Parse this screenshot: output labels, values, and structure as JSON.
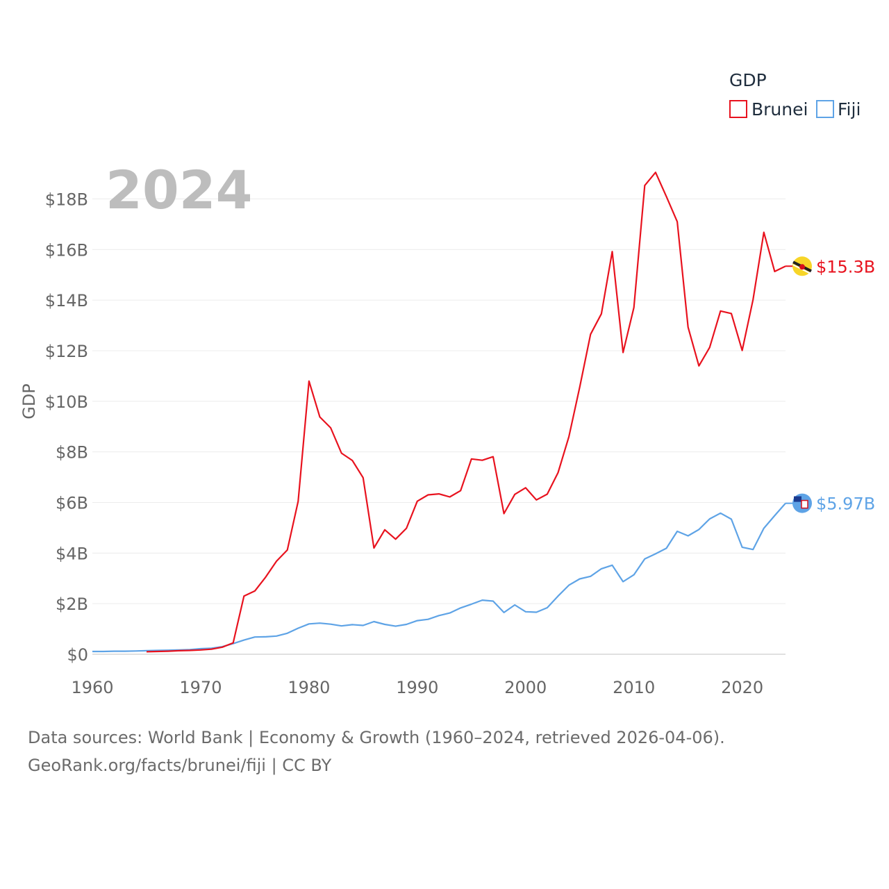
{
  "chart_data": {
    "type": "line",
    "title": "GDP",
    "year_label": "2024",
    "ylabel": "GDP",
    "xlabel": "",
    "xlim": [
      1960,
      2024
    ],
    "ylim": [
      0,
      19000000000
    ],
    "grid": true,
    "legend": {
      "title": "GDP",
      "placement": "top-right"
    },
    "x_ticks": [
      1960,
      1970,
      1980,
      1990,
      2000,
      2010,
      2020
    ],
    "x_tick_labels": [
      "1960",
      "1970",
      "1980",
      "1990",
      "2000",
      "2010",
      "2020"
    ],
    "y_ticks": [
      0,
      2000000000,
      4000000000,
      6000000000,
      8000000000,
      10000000000,
      12000000000,
      14000000000,
      16000000000,
      18000000000
    ],
    "y_tick_labels": [
      "$0",
      "$2B",
      "$4B",
      "$6B",
      "$8B",
      "$10B",
      "$12B",
      "$14B",
      "$16B",
      "$18B"
    ],
    "series": [
      {
        "name": "Brunei",
        "color": "#e8121e",
        "end_label": "$15.3B",
        "x": [
          1965,
          1966,
          1967,
          1968,
          1969,
          1970,
          1971,
          1972,
          1973,
          1974,
          1975,
          1976,
          1977,
          1978,
          1979,
          1980,
          1981,
          1982,
          1983,
          1984,
          1985,
          1986,
          1987,
          1988,
          1989,
          1990,
          1991,
          1992,
          1993,
          1994,
          1995,
          1996,
          1997,
          1998,
          1999,
          2000,
          2001,
          2002,
          2003,
          2004,
          2005,
          2006,
          2007,
          2008,
          2009,
          2010,
          2011,
          2012,
          2013,
          2014,
          2015,
          2016,
          2017,
          2018,
          2019,
          2020,
          2021,
          2022,
          2023,
          2024
        ],
        "values": [
          100000000.0,
          110000000.0,
          120000000.0,
          140000000.0,
          150000000.0,
          170000000.0,
          200000000.0,
          280000000.0,
          450000000.0,
          2300000000.0,
          2500000000.0,
          3050000000.0,
          3680000000.0,
          4120000000.0,
          6050000000.0,
          10800000000.0,
          9380000000.0,
          8950000000.0,
          7950000000.0,
          7660000000.0,
          6980000000.0,
          4200000000.0,
          4920000000.0,
          4550000000.0,
          4980000000.0,
          6050000000.0,
          6300000000.0,
          6340000000.0,
          6220000000.0,
          6470000000.0,
          7720000000.0,
          7670000000.0,
          7810000000.0,
          5560000000.0,
          6320000000.0,
          6580000000.0,
          6100000000.0,
          6330000000.0,
          7180000000.0,
          8600000000.0,
          10560000000.0,
          12650000000.0,
          13460000000.0,
          15920000000.0,
          11930000000.0,
          13710000000.0,
          18530000000.0,
          19050000000.0,
          18090000000.0,
          17100000000.0,
          12930000000.0,
          11400000000.0,
          12130000000.0,
          13570000000.0,
          13470000000.0,
          12010000000.0,
          14010000000.0,
          16680000000.0,
          15130000000.0,
          15340000000.0
        ]
      },
      {
        "name": "Fiji",
        "color": "#5ea3e6",
        "end_label": "$5.97B",
        "x": [
          1960,
          1961,
          1962,
          1963,
          1964,
          1965,
          1966,
          1967,
          1968,
          1969,
          1970,
          1971,
          1972,
          1973,
          1974,
          1975,
          1976,
          1977,
          1978,
          1979,
          1980,
          1981,
          1982,
          1983,
          1984,
          1985,
          1986,
          1987,
          1988,
          1989,
          1990,
          1991,
          1992,
          1993,
          1994,
          1995,
          1996,
          1997,
          1998,
          1999,
          2000,
          2001,
          2002,
          2003,
          2004,
          2005,
          2006,
          2007,
          2008,
          2009,
          2010,
          2011,
          2012,
          2013,
          2014,
          2015,
          2016,
          2017,
          2018,
          2019,
          2020,
          2021,
          2022,
          2023,
          2024
        ],
        "values": [
          110000000.0,
          110000000.0,
          120000000.0,
          120000000.0,
          130000000.0,
          140000000.0,
          150000000.0,
          160000000.0,
          170000000.0,
          180000000.0,
          220000000.0,
          240000000.0,
          300000000.0,
          420000000.0,
          560000000.0,
          680000000.0,
          690000000.0,
          720000000.0,
          830000000.0,
          1030000000.0,
          1200000000.0,
          1230000000.0,
          1190000000.0,
          1120000000.0,
          1170000000.0,
          1140000000.0,
          1290000000.0,
          1180000000.0,
          1110000000.0,
          1180000000.0,
          1330000000.0,
          1380000000.0,
          1530000000.0,
          1630000000.0,
          1830000000.0,
          1980000000.0,
          2140000000.0,
          2100000000.0,
          1650000000.0,
          1950000000.0,
          1680000000.0,
          1660000000.0,
          1840000000.0,
          2300000000.0,
          2730000000.0,
          2980000000.0,
          3080000000.0,
          3380000000.0,
          3520000000.0,
          2870000000.0,
          3140000000.0,
          3770000000.0,
          3970000000.0,
          4190000000.0,
          4860000000.0,
          4680000000.0,
          4930000000.0,
          5350000000.0,
          5580000000.0,
          5340000000.0,
          4230000000.0,
          4140000000.0,
          4980000000.0,
          5480000000.0,
          5970000000.0
        ]
      }
    ]
  },
  "footer": {
    "line1": "Data sources: World Bank | Economy & Growth (1960–2024, retrieved 2026-04-06).",
    "line2": "GeoRank.org/facts/brunei/fiji | CC BY"
  }
}
